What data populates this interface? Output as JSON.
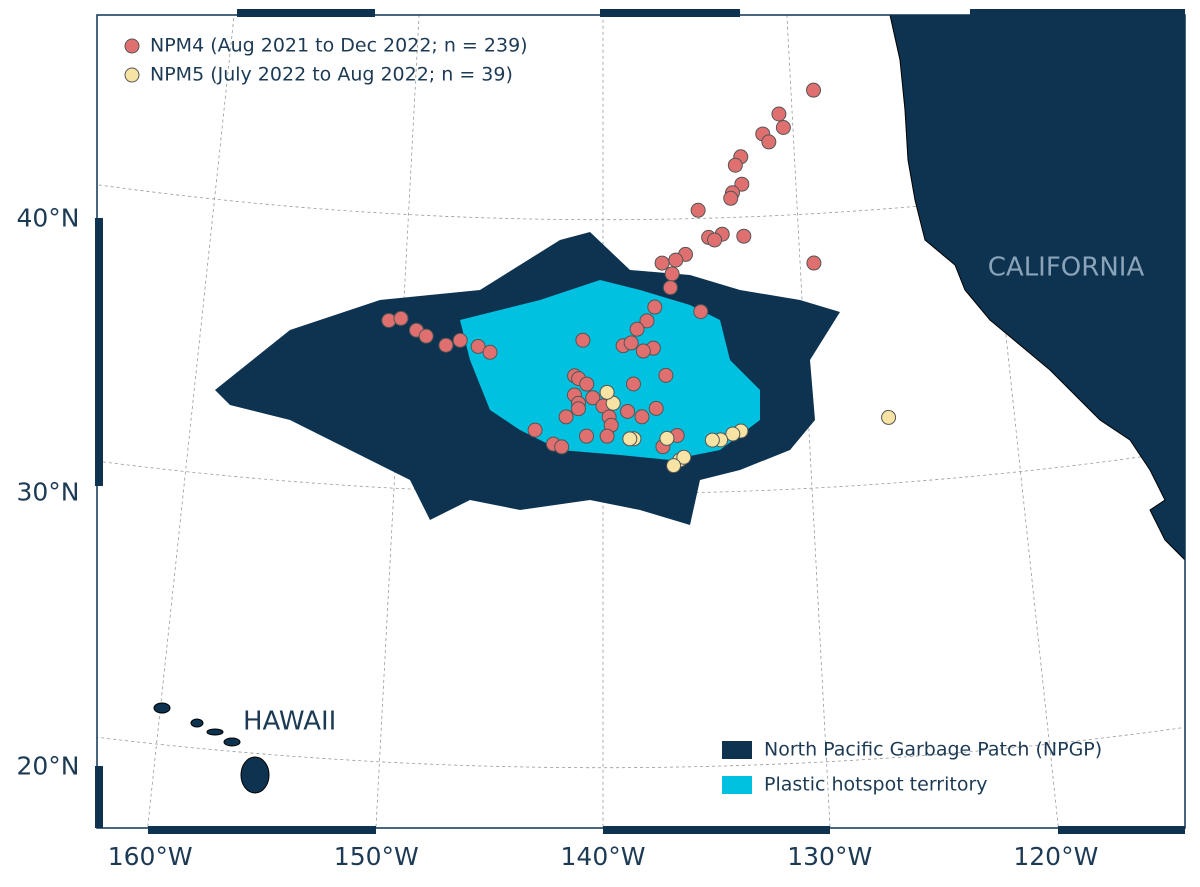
{
  "chart_data": {
    "type": "map",
    "place_labels": [
      "CALIFORNIA",
      "HAWAII"
    ],
    "xticks": [
      {
        "value": -160,
        "label": "160°W"
      },
      {
        "value": -150,
        "label": "150°W"
      },
      {
        "value": -140,
        "label": "140°W"
      },
      {
        "value": -130,
        "label": "130°W"
      },
      {
        "value": -120,
        "label": "120°W"
      }
    ],
    "yticks": [
      {
        "value": 20,
        "label": "20°N"
      },
      {
        "value": 30,
        "label": "30°N"
      },
      {
        "value": 40,
        "label": "40°N"
      }
    ],
    "grid": true,
    "areas": [
      {
        "name": "North Pacific Garbage Patch (NPGP)",
        "color": "#0d3350"
      },
      {
        "name": "Plastic hotspot territory",
        "color": "#00c2e0"
      }
    ],
    "series": [
      {
        "name": "NPM4 (Aug 2021 to Dec 2022; n = 239)",
        "color": "#e07070",
        "lon": [
          -128.8,
          -130.7,
          -130.5,
          -131.6,
          -131.3,
          -132.8,
          -133.1,
          -132.8,
          -133.3,
          -133.4,
          -135.1,
          -133.9,
          -134.6,
          -134.3,
          -132.8,
          -129.3,
          -135.8,
          -136.3,
          -137.0,
          -136.5,
          -136.6,
          -135.1,
          -137.4,
          -137.8,
          -138.3,
          -139.0,
          -138.6,
          -137.5,
          -138.0,
          -141.0,
          -141.4,
          -141.2,
          -140.8,
          -141.4,
          -141.2,
          -140.5,
          -140.0,
          -139.7,
          -139.6,
          -138.5,
          -136.9,
          -137.4,
          -138.1,
          -138.8,
          -140.8,
          -139.8,
          -142.4,
          -142.0,
          -143.3,
          -136.4,
          -137.1,
          -150.7,
          -150.1,
          -149.3,
          -148.8,
          -147.8,
          -147.1,
          -146.2,
          -145.6,
          -141.8,
          -141.2
        ],
        "lat": [
          44.5,
          43.7,
          43.2,
          43.0,
          42.7,
          42.2,
          41.9,
          41.2,
          40.9,
          40.7,
          40.3,
          39.4,
          39.3,
          39.2,
          39.3,
          38.2,
          38.7,
          38.5,
          38.4,
          38.0,
          37.5,
          36.6,
          36.8,
          36.3,
          36.0,
          35.4,
          35.5,
          35.3,
          35.2,
          35.6,
          34.3,
          34.2,
          34.0,
          33.6,
          33.3,
          33.5,
          33.2,
          32.8,
          32.5,
          34.0,
          34.3,
          33.1,
          32.8,
          33.0,
          32.1,
          32.1,
          31.8,
          31.7,
          32.3,
          32.1,
          31.7,
          36.1,
          36.2,
          35.8,
          35.6,
          35.3,
          35.5,
          35.3,
          35.1,
          32.8,
          33.1
        ]
      },
      {
        "name": "NPM5 (July 2022 to Aug 2022; n = 39)",
        "color": "#f7e3a3",
        "lon": [
          -126.1,
          -133.3,
          -133.7,
          -134.3,
          -134.7,
          -136.3,
          -136.1,
          -136.6,
          -138.5,
          -138.7,
          -136.9,
          -139.5,
          -139.8
        ],
        "lat": [
          32.4,
          32.2,
          32.1,
          31.9,
          31.9,
          31.2,
          31.3,
          31.0,
          32.0,
          32.0,
          32.0,
          33.3,
          33.7
        ]
      }
    ]
  }
}
